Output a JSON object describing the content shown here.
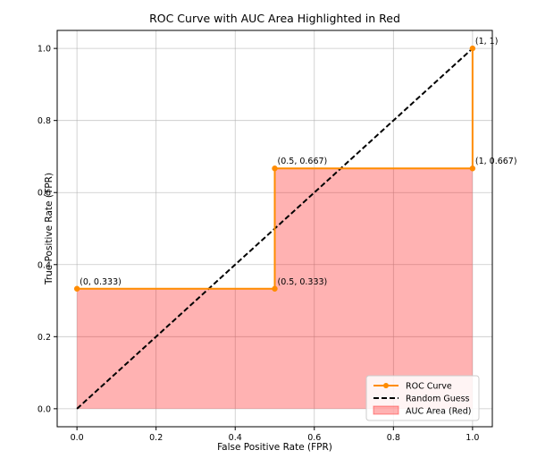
{
  "chart_data": {
    "type": "line",
    "title": "ROC Curve with AUC Area Highlighted in Red",
    "xlabel": "False Positive Rate (FPR)",
    "ylabel": "True Positive Rate (TPR)",
    "xlim": [
      0,
      1
    ],
    "ylim": [
      0,
      1
    ],
    "x_ticks": [
      "0.0",
      "0.2",
      "0.4",
      "0.6",
      "0.8",
      "1.0"
    ],
    "y_ticks": [
      "0.0",
      "0.2",
      "0.4",
      "0.6",
      "0.8",
      "1.0"
    ],
    "grid": true,
    "legend_position": "bottom-right",
    "series": [
      {
        "name": "ROC Curve",
        "style": "solid-with-markers",
        "color": "#ff8c00",
        "points": [
          [
            0,
            0.333
          ],
          [
            0.5,
            0.333
          ],
          [
            0.5,
            0.667
          ],
          [
            1,
            0.667
          ],
          [
            1,
            1
          ]
        ]
      },
      {
        "name": "Random Guess",
        "style": "dashed",
        "color": "#000000",
        "points": [
          [
            0,
            0
          ],
          [
            1,
            1
          ]
        ]
      }
    ],
    "area": {
      "name": "AUC Area (Red)",
      "color": "#ff0000",
      "opacity": 0.3,
      "points": [
        [
          0,
          0.333
        ],
        [
          0.5,
          0.333
        ],
        [
          0.5,
          0.667
        ],
        [
          1,
          0.667
        ],
        [
          1,
          1
        ]
      ]
    },
    "annotations": [
      {
        "text": "(0, 0.333)",
        "x": 0,
        "y": 0.333
      },
      {
        "text": "(0.5, 0.333)",
        "x": 0.5,
        "y": 0.333
      },
      {
        "text": "(0.5, 0.667)",
        "x": 0.5,
        "y": 0.667
      },
      {
        "text": "(1, 0.667)",
        "x": 1,
        "y": 0.667
      },
      {
        "text": "(1, 1)",
        "x": 1,
        "y": 1
      }
    ]
  }
}
